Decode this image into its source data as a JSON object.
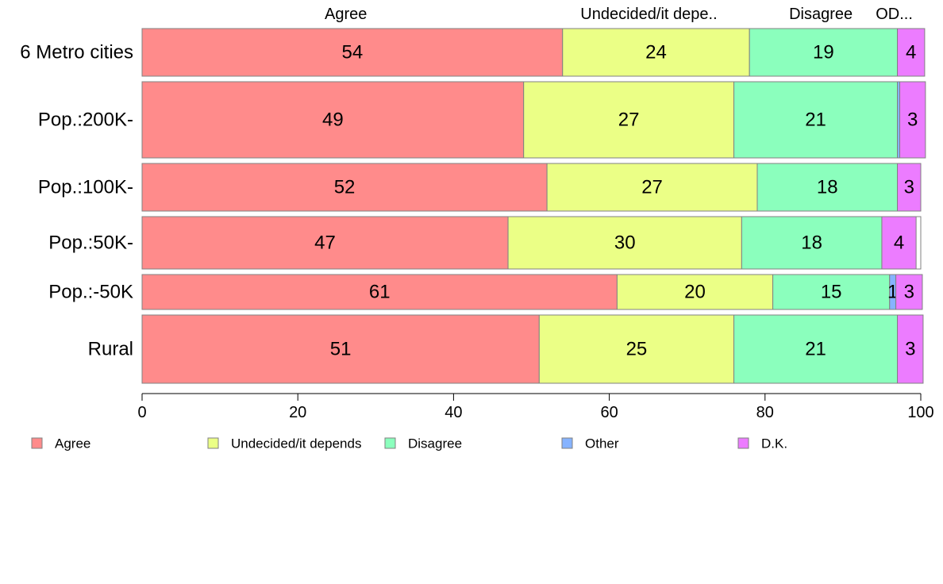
{
  "chart_data": {
    "type": "bar",
    "orientation": "horizontal",
    "stacked": true,
    "categories": [
      "6 Metro cities",
      "Pop.:200K-",
      "Pop.:100K-",
      "Pop.:50K-",
      "Pop.:-50K",
      "Rural"
    ],
    "bar_weights": [
      0.6,
      0.96,
      0.6,
      0.66,
      0.44,
      0.86
    ],
    "series": [
      {
        "name": "Agree",
        "color": "#ff8b8b",
        "values": [
          54,
          49,
          52,
          47,
          61,
          51
        ],
        "labels": [
          "54",
          "49",
          "52",
          "47",
          "61",
          "51"
        ]
      },
      {
        "name": "Undecided/it depends",
        "color": "#ebff86",
        "values": [
          24,
          27,
          27,
          30,
          20,
          25
        ],
        "labels": [
          "24",
          "27",
          "27",
          "30",
          "20",
          "25"
        ]
      },
      {
        "name": "Disagree",
        "color": "#8bffbd",
        "values": [
          19,
          21,
          18,
          18,
          15,
          21
        ],
        "labels": [
          "19",
          "21",
          "18",
          "18",
          "15",
          "21"
        ]
      },
      {
        "name": "Other",
        "color": "#86b3ff",
        "values": [
          0,
          0.3,
          0,
          0,
          0.8,
          0
        ],
        "labels": [
          "",
          "",
          "",
          "",
          "1",
          ""
        ]
      },
      {
        "name": "D.K.",
        "color": "#ec7cff",
        "values": [
          3.5,
          3.3,
          3.0,
          4.4,
          3.4,
          3.3
        ],
        "labels": [
          "4",
          "3",
          "3",
          "4",
          "3",
          "3"
        ]
      }
    ],
    "top_labels": [
      "Agree",
      "Undecided/it depe..",
      "Disagree",
      "OD..."
    ],
    "xlim": [
      0,
      100
    ],
    "xticks": [
      "0",
      "20",
      "40",
      "60",
      "80",
      "100"
    ],
    "legend": [
      "Agree",
      "Undecided/it depends",
      "Disagree",
      "Other",
      "D.K."
    ],
    "legend_position": "bottom",
    "grid": false
  }
}
